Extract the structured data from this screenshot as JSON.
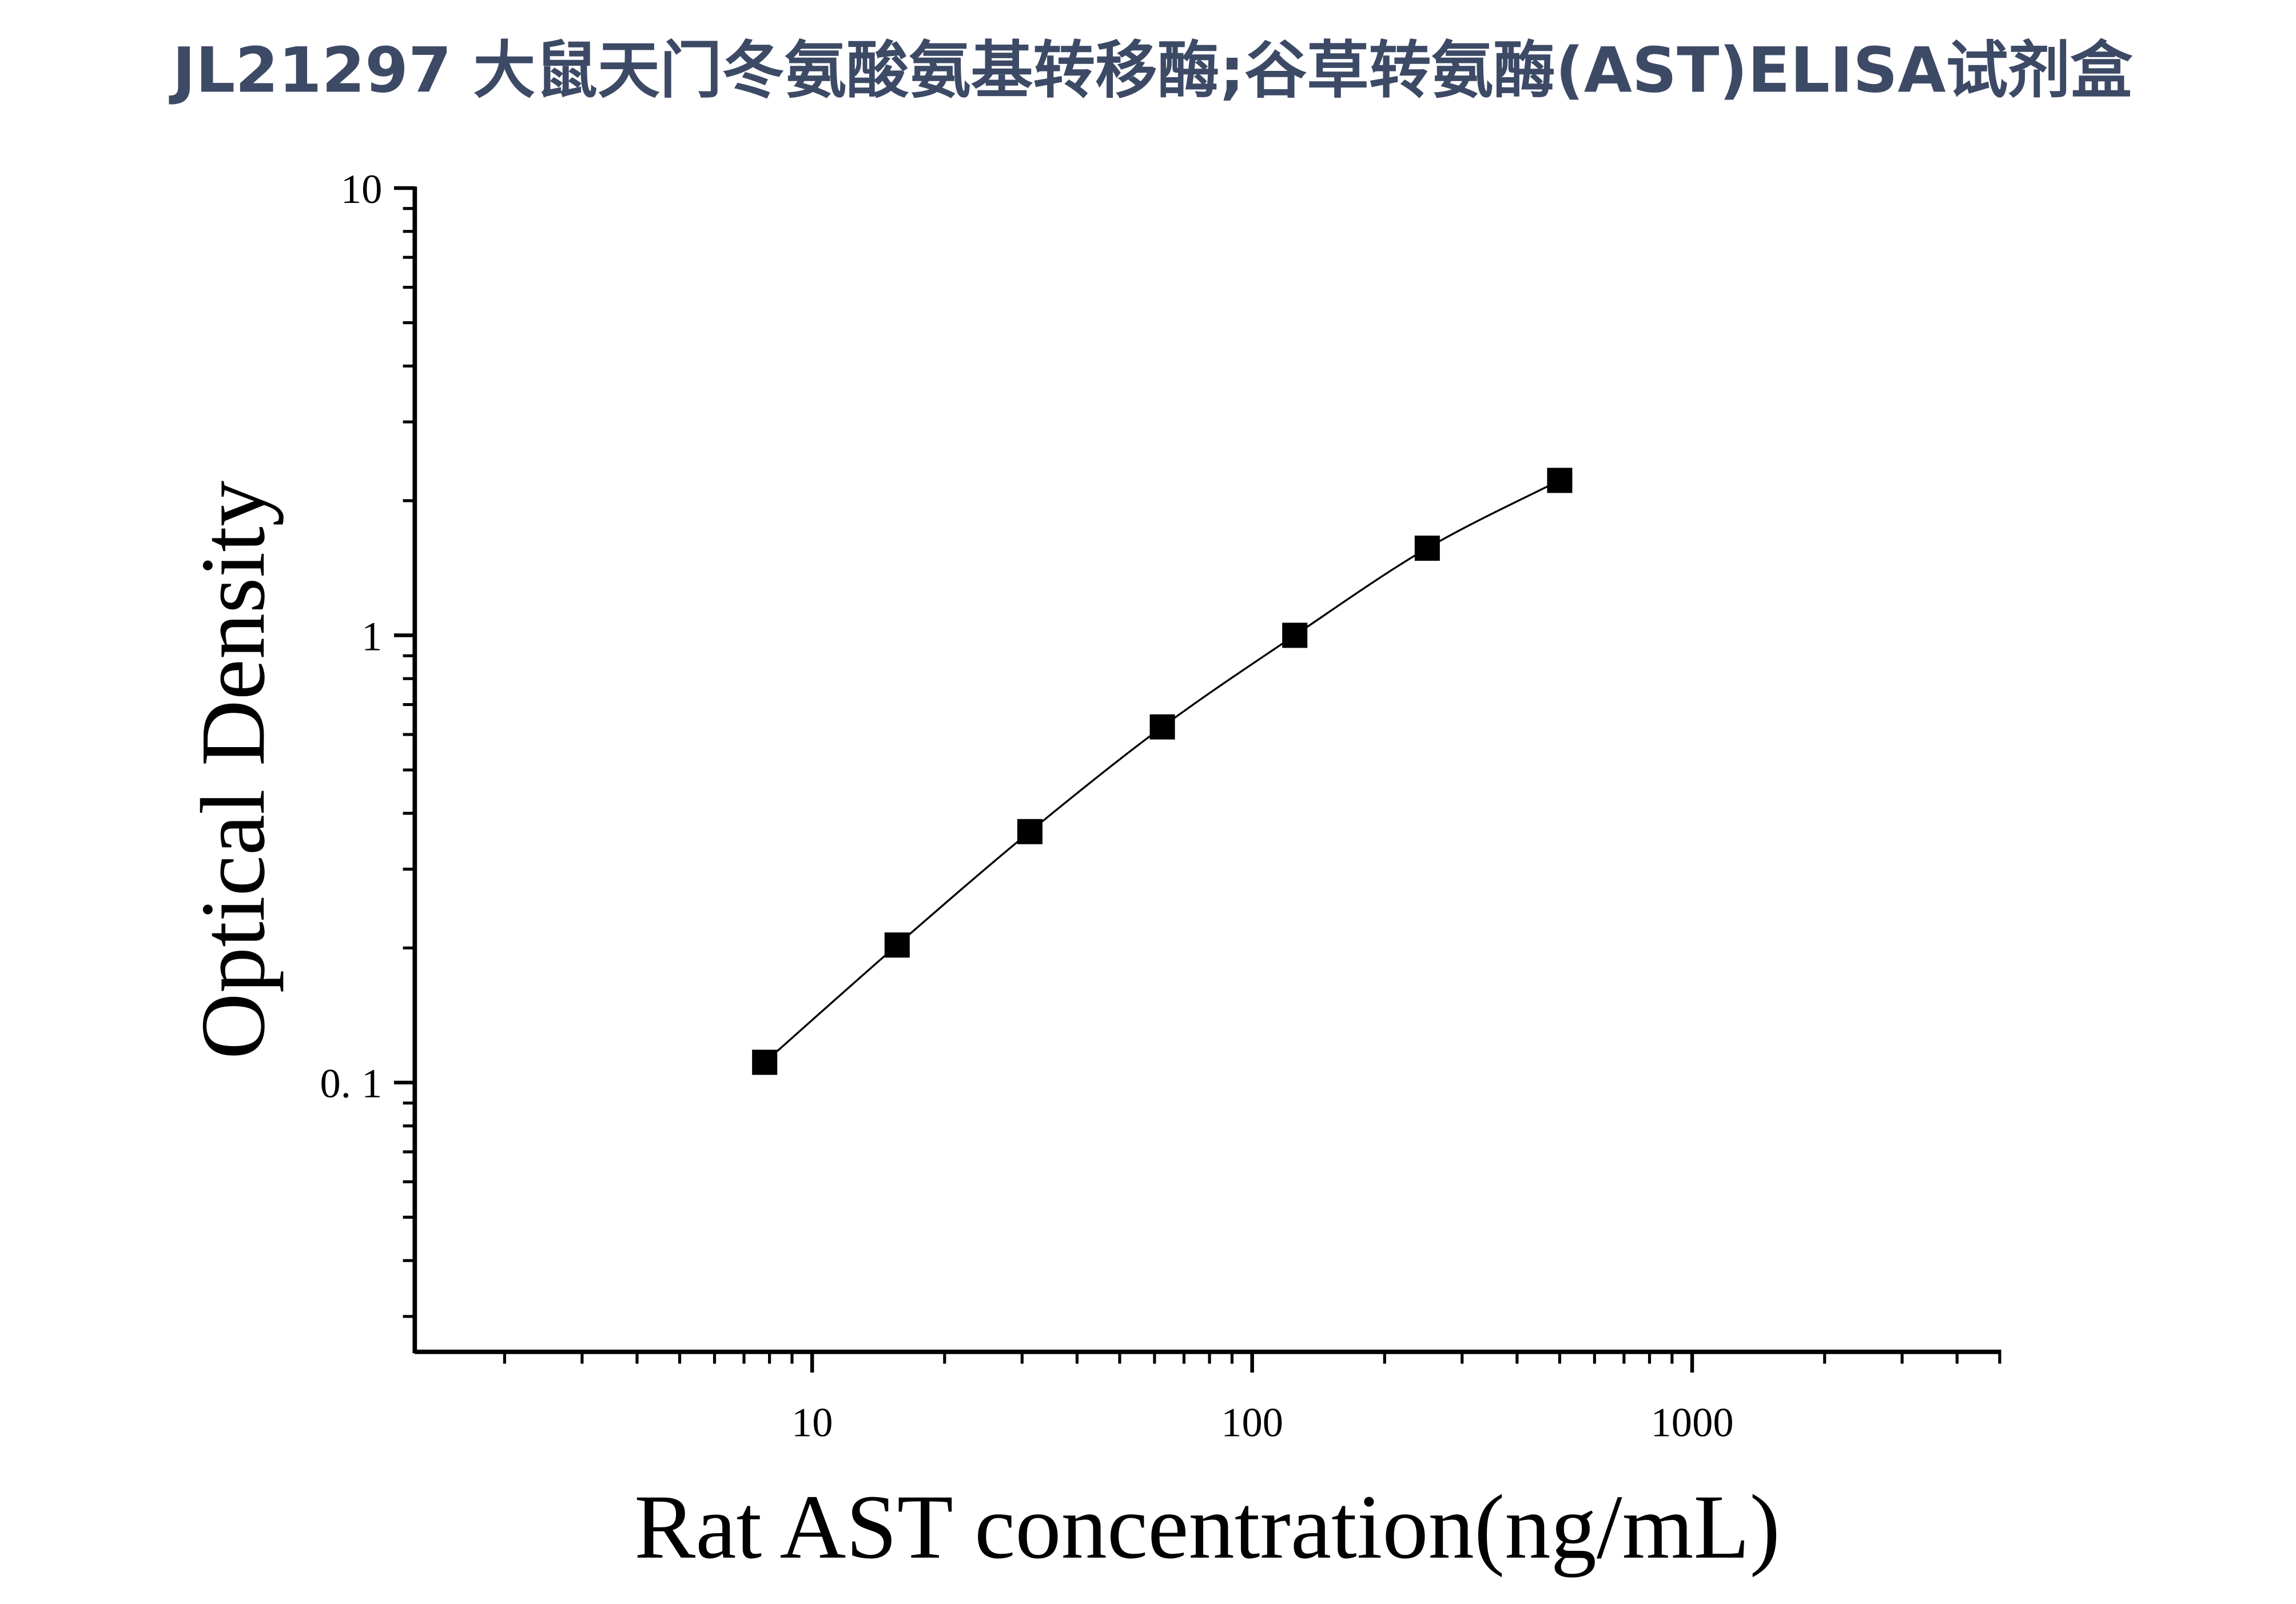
{
  "chart_data": {
    "type": "scatter",
    "title": "JL21297 大鼠天门冬氨酸氨基转移酶;谷草转氨酶(AST)ELISA试剂盒",
    "x_label": "Rat AST concentration(ng/mL)",
    "y_label": "Optical Density",
    "x": [
      7.8,
      15.6,
      31.25,
      62.5,
      125,
      250,
      500
    ],
    "series": [
      {
        "color": "#000000",
        "values": [
          0.111,
          0.203,
          0.364,
          0.624,
          1.0,
          1.566,
          2.22
        ]
      }
    ],
    "xlim": [
      1.25,
      5000
    ],
    "ylim": [
      0.025,
      10
    ],
    "xscale": "log",
    "yscale": "log",
    "xticks": [
      10,
      100,
      1000
    ],
    "yticks": [
      {
        "value": 0.1,
        "label": "0. 1"
      },
      1,
      10
    ],
    "xminorticks": [
      2,
      3,
      4,
      5,
      6,
      7,
      8,
      9,
      20,
      30,
      40,
      50,
      60,
      70,
      80,
      90,
      200,
      300,
      400,
      500,
      600,
      700,
      800,
      900,
      2000,
      3000,
      4000,
      5000
    ],
    "yminorticks": [
      0.03,
      0.04,
      0.05,
      0.06,
      0.07,
      0.08,
      0.09,
      0.2,
      0.3,
      0.4,
      0.5,
      0.6,
      0.7,
      0.8,
      0.9,
      2,
      3,
      4,
      5,
      6,
      7,
      8,
      9
    ],
    "fit_line": true,
    "grid": false
  }
}
